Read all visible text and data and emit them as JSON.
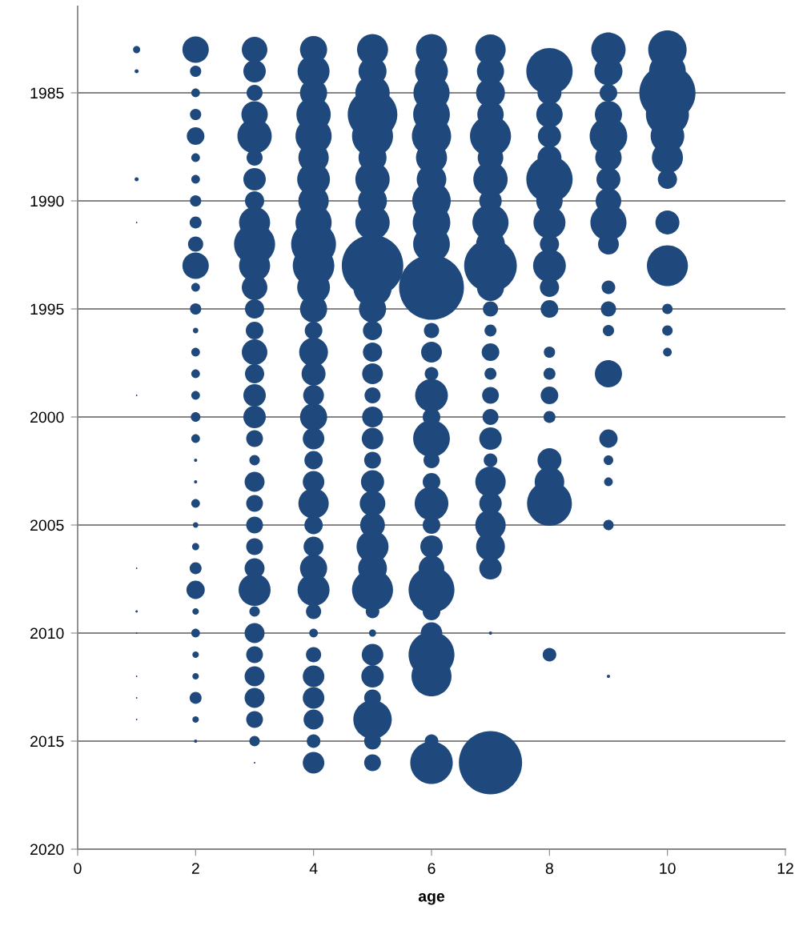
{
  "chart_data": {
    "type": "bubble",
    "xlabel": "age",
    "xlim": [
      0,
      12
    ],
    "xticks": [
      0,
      2,
      4,
      6,
      8,
      10,
      12
    ],
    "ylim": [
      2020,
      1981
    ],
    "yticks": [
      1985,
      1990,
      1995,
      2000,
      2005,
      2010,
      2015,
      2020
    ],
    "grid": "y",
    "series": [
      {
        "color": "#1f497d",
        "x": [
          1,
          1,
          1,
          1,
          1,
          1,
          1,
          1,
          1,
          1,
          1
        ],
        "values": [
          1983,
          1984,
          1989,
          1991,
          1999,
          2007,
          2009,
          2010,
          2012,
          2013,
          2014
        ],
        "sizes": [
          0.012,
          0.004,
          0.004,
          0.0005,
          0.0005,
          0.0005,
          0.0014,
          0.0005,
          0.0005,
          0.0005,
          0.0005
        ]
      },
      {
        "color": "#1f497d",
        "x": [
          2,
          2,
          2,
          2,
          2,
          2,
          2,
          2,
          2,
          2,
          2,
          2,
          2,
          2,
          2,
          2,
          2,
          2,
          2,
          2,
          2,
          2,
          2,
          2,
          2,
          2,
          2,
          2,
          2,
          2,
          2,
          2,
          2
        ],
        "values": [
          1983,
          1984,
          1985,
          1986,
          1987,
          1988,
          1989,
          1990,
          1991,
          1992,
          1993,
          1994,
          1995,
          1996,
          1997,
          1998,
          1999,
          2000,
          2001,
          2002,
          2003,
          2004,
          2005,
          2006,
          2007,
          2008,
          2009,
          2010,
          2011,
          2012,
          2013,
          2014,
          2015
        ],
        "sizes": [
          0.166,
          0.03,
          0.018,
          0.03,
          0.074,
          0.018,
          0.018,
          0.03,
          0.034,
          0.055,
          0.166,
          0.018,
          0.03,
          0.007,
          0.018,
          0.018,
          0.018,
          0.022,
          0.018,
          0.0025,
          0.0025,
          0.018,
          0.007,
          0.012,
          0.034,
          0.08,
          0.01,
          0.018,
          0.01,
          0.01,
          0.034,
          0.01,
          0.0025
        ]
      },
      {
        "color": "#1f497d",
        "x": [
          3,
          3,
          3,
          3,
          3,
          3,
          3,
          3,
          3,
          3,
          3,
          3,
          3,
          3,
          3,
          3,
          3,
          3,
          3,
          3,
          3,
          3,
          3,
          3,
          3,
          3,
          3,
          3,
          3,
          3,
          3,
          3,
          3,
          3
        ],
        "values": [
          1983,
          1984,
          1985,
          1986,
          1987,
          1988,
          1989,
          1990,
          1991,
          1992,
          1993,
          1994,
          1995,
          1996,
          1997,
          1998,
          1999,
          2000,
          2001,
          2002,
          2003,
          2004,
          2005,
          2006,
          2007,
          2008,
          2009,
          2010,
          2011,
          2012,
          2013,
          2014,
          2015,
          2016
        ],
        "sizes": [
          0.156,
          0.12,
          0.061,
          0.166,
          0.28,
          0.061,
          0.12,
          0.088,
          0.23,
          0.4,
          0.23,
          0.156,
          0.088,
          0.074,
          0.156,
          0.088,
          0.12,
          0.12,
          0.067,
          0.026,
          0.095,
          0.067,
          0.067,
          0.067,
          0.095,
          0.244,
          0.026,
          0.095,
          0.067,
          0.095,
          0.095,
          0.067,
          0.026,
          0.0006
        ]
      },
      {
        "color": "#1f497d",
        "x": [
          4,
          4,
          4,
          4,
          4,
          4,
          4,
          4,
          4,
          4,
          4,
          4,
          4,
          4,
          4,
          4,
          4,
          4,
          4,
          4,
          4,
          4,
          4,
          4,
          4,
          4,
          4,
          4,
          4,
          4,
          4,
          4,
          4,
          4
        ],
        "values": [
          1983,
          1984,
          1985,
          1986,
          1987,
          1988,
          1989,
          1990,
          1991,
          1992,
          1993,
          1994,
          1995,
          1996,
          1997,
          1998,
          1999,
          2000,
          2001,
          2002,
          2003,
          2004,
          2005,
          2006,
          2007,
          2008,
          2009,
          2010,
          2011,
          2012,
          2013,
          2014,
          2015,
          2016
        ],
        "sizes": [
          0.176,
          0.244,
          0.176,
          0.28,
          0.31,
          0.22,
          0.256,
          0.22,
          0.31,
          0.478,
          0.41,
          0.256,
          0.176,
          0.074,
          0.198,
          0.137,
          0.103,
          0.176,
          0.111,
          0.08,
          0.111,
          0.22,
          0.08,
          0.095,
          0.176,
          0.244,
          0.055,
          0.018,
          0.055,
          0.111,
          0.111,
          0.095,
          0.044,
          0.111
        ]
      },
      {
        "color": "#1f497d",
        "x": [
          5,
          5,
          5,
          5,
          5,
          5,
          5,
          5,
          5,
          5,
          5,
          5,
          5,
          5,
          5,
          5,
          5,
          5,
          5,
          5,
          5,
          5,
          5,
          5,
          5,
          5,
          5,
          5,
          5,
          5,
          5,
          5,
          5
        ],
        "values": [
          1983,
          1984,
          1985,
          1986,
          1987,
          1988,
          1989,
          1990,
          1991,
          1993,
          1994,
          1995,
          1996,
          1997,
          1998,
          1999,
          2000,
          2001,
          2002,
          2003,
          2004,
          2005,
          2006,
          2007,
          2008,
          2009,
          2010,
          2011,
          2012,
          2013,
          2014,
          2015,
          2016
        ],
        "sizes": [
          0.23,
          0.187,
          0.28,
          0.585,
          0.4,
          0.187,
          0.28,
          0.198,
          0.28,
          0.9,
          0.351,
          0.176,
          0.088,
          0.088,
          0.103,
          0.061,
          0.103,
          0.111,
          0.067,
          0.128,
          0.156,
          0.146,
          0.244,
          0.198,
          0.4,
          0.044,
          0.012,
          0.111,
          0.12,
          0.067,
          0.351,
          0.067,
          0.067
        ]
      },
      {
        "color": "#1f497d",
        "x": [
          6,
          6,
          6,
          6,
          6,
          6,
          6,
          6,
          6,
          6,
          6,
          6,
          6,
          6,
          6,
          6,
          6,
          6,
          6,
          6,
          6,
          6,
          6,
          6,
          6,
          6,
          6,
          6,
          6,
          6
        ],
        "values": [
          1983,
          1984,
          1985,
          1986,
          1987,
          1988,
          1989,
          1990,
          1991,
          1992,
          1994,
          1996,
          1997,
          1998,
          1999,
          2000,
          2001,
          2002,
          2003,
          2004,
          2005,
          2006,
          2007,
          2008,
          2009,
          2010,
          2011,
          2012,
          2015,
          2016
        ],
        "sizes": [
          0.23,
          0.256,
          0.31,
          0.32,
          0.366,
          0.23,
          0.209,
          0.351,
          0.336,
          0.32,
          1,
          0.055,
          0.103,
          0.044,
          0.256,
          0.074,
          0.32,
          0.061,
          0.074,
          0.27,
          0.074,
          0.12,
          0.156,
          0.5,
          0.074,
          0.111,
          0.5,
          0.38,
          0.044,
          0.43
        ]
      },
      {
        "color": "#1f497d",
        "x": [
          7,
          7,
          7,
          7,
          7,
          7,
          7,
          7,
          7,
          7,
          7,
          7,
          7,
          7,
          7,
          7,
          7,
          7,
          7,
          7,
          7,
          7,
          7,
          7,
          7,
          7,
          7
        ],
        "values": [
          1983,
          1984,
          1985,
          1986,
          1987,
          1988,
          1989,
          1990,
          1991,
          1992,
          1993,
          1994,
          1995,
          1996,
          1997,
          1998,
          1999,
          2000,
          2001,
          2002,
          2003,
          2004,
          2005,
          2006,
          2007,
          2010,
          2016
        ],
        "sizes": [
          0.22,
          0.176,
          0.198,
          0.166,
          0.4,
          0.156,
          0.28,
          0.12,
          0.31,
          0.198,
          0.66,
          0.176,
          0.055,
          0.034,
          0.074,
          0.034,
          0.067,
          0.061,
          0.12,
          0.044,
          0.22,
          0.12,
          0.22,
          0.198,
          0.12,
          0.0025,
          0.95
        ]
      },
      {
        "color": "#1f497d",
        "x": [
          8,
          8,
          8,
          8,
          8,
          8,
          8,
          8,
          8,
          8,
          8,
          8,
          8,
          8,
          8,
          8,
          8,
          8,
          8,
          8
        ],
        "values": [
          1984,
          1985,
          1986,
          1987,
          1988,
          1989,
          1990,
          1991,
          1992,
          1993,
          1994,
          1995,
          1997,
          1998,
          1999,
          2000,
          2002,
          2003,
          2004,
          2011
        ],
        "sizes": [
          0.51,
          0.137,
          0.166,
          0.128,
          0.137,
          0.51,
          0.166,
          0.244,
          0.088,
          0.256,
          0.088,
          0.074,
          0.03,
          0.034,
          0.074,
          0.034,
          0.137,
          0.209,
          0.478,
          0.044
        ]
      },
      {
        "color": "#1f497d",
        "x": [
          9,
          9,
          9,
          9,
          9,
          9,
          9,
          9,
          9,
          9,
          9,
          9,
          9,
          9,
          9,
          9,
          9,
          9,
          9
        ],
        "values": [
          1983,
          1984,
          1985,
          1986,
          1987,
          1988,
          1989,
          1990,
          1991,
          1992,
          1994,
          1995,
          1996,
          1998,
          2001,
          2002,
          2003,
          2005,
          2012
        ],
        "sizes": [
          0.28,
          0.187,
          0.074,
          0.176,
          0.336,
          0.166,
          0.137,
          0.156,
          0.31,
          0.103,
          0.044,
          0.055,
          0.03,
          0.176,
          0.08,
          0.022,
          0.018,
          0.026,
          0.0025
        ]
      },
      {
        "color": "#1f497d",
        "x": [
          10,
          10,
          10,
          10,
          10,
          10,
          10,
          10,
          10,
          10,
          10,
          10
        ],
        "values": [
          1983,
          1984,
          1985,
          1986,
          1987,
          1988,
          1989,
          1991,
          1993,
          1995,
          1996,
          1997
        ],
        "sizes": [
          0.351,
          0.32,
          0.75,
          0.44,
          0.27,
          0.23,
          0.088,
          0.137,
          0.4,
          0.026,
          0.026,
          0.018
        ]
      }
    ]
  }
}
